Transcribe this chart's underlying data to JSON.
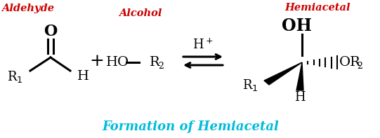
{
  "title": "Formation of Hemiacetal",
  "title_color": "#00BBDD",
  "title_fontsize": 13,
  "aldehyde_label": "Aldehyde",
  "alcohol_label": "Alcohol",
  "hemiacetal_label": "Hemiacetal",
  "label_color": "#CC0000",
  "label_fontsize": 10.5,
  "body_color": "#000000",
  "bg_color": "#FFFFFF",
  "main_fontsize": 14,
  "sub_fontsize": 9,
  "lw": 2.2
}
